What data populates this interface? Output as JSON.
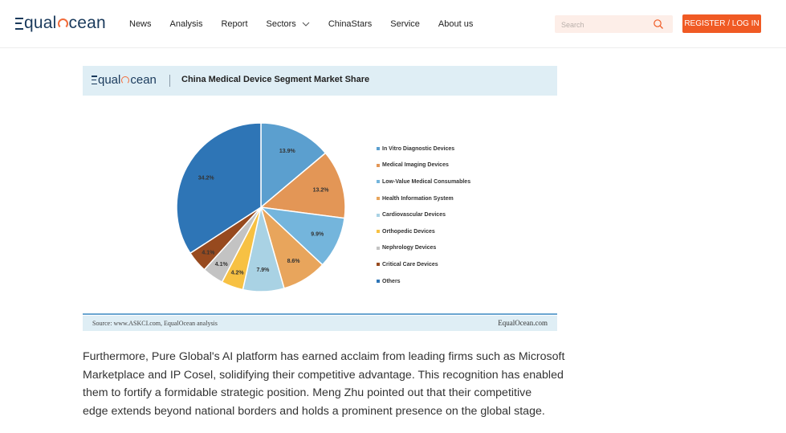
{
  "header": {
    "logo_left": "qual",
    "logo_right": "cean",
    "nav": [
      "News",
      "Analysis",
      "Report",
      "Sectors",
      "ChinaStars",
      "Service",
      "About us"
    ],
    "search_placeholder": "Search",
    "register_label": "REGISTER / LOG IN",
    "accent_color": "#f05a24"
  },
  "figure": {
    "logo_left": "qual",
    "logo_right": "cean",
    "title": "China Medical Device Segment Market Share",
    "source": "Source: www.ASKCI.com, EqualOcean analysis",
    "credit": "EqualOcean.com"
  },
  "chart_data": {
    "type": "pie",
    "title": "China Medical Device Segment Market Share",
    "start": "top (12 o'clock), clockwise",
    "slices": [
      {
        "label": "In Vitro Diagnostic Devices",
        "value": 13.9,
        "display": "13.9%",
        "color": "#5b9fcf"
      },
      {
        "label": "Medical Imaging Devices",
        "value": 13.2,
        "display": "13.2%",
        "color": "#e39656"
      },
      {
        "label": "Low-Value Medical Consumables",
        "value": 9.9,
        "display": "9.9%",
        "color": "#74b5dc"
      },
      {
        "label": "Health Information System",
        "value": 8.6,
        "display": "8.6%",
        "color": "#e8a55c"
      },
      {
        "label": "Cardiovascular Devices",
        "value": 7.9,
        "display": "7.9%",
        "color": "#a9d2e4"
      },
      {
        "label": "Orthopedic Devices",
        "value": 4.2,
        "display": "4.2%",
        "color": "#f7c143"
      },
      {
        "label": "Nephrology Devices",
        "value": 4.1,
        "display": "4.1%",
        "color": "#c3c3c3"
      },
      {
        "label": "Critical Care Devices",
        "value": 4.1,
        "display": "4.1%",
        "color": "#974a1f"
      },
      {
        "label": "Others",
        "value": 34.2,
        "display": "34.2%",
        "color": "#2e75b6"
      }
    ],
    "legend_position": "right"
  },
  "article": {
    "lines": [
      "Furthermore, Pure Global's AI platform has earned acclaim from leading firms such as Microsoft",
      "Marketplace and IP Cosel, solidifying their competitive advantage. This recognition has enabled",
      "them to fortify a formidable strategic position. Meng Zhu pointed out that their competitive",
      "edge extends beyond national borders and holds a prominent presence on the global stage."
    ]
  }
}
